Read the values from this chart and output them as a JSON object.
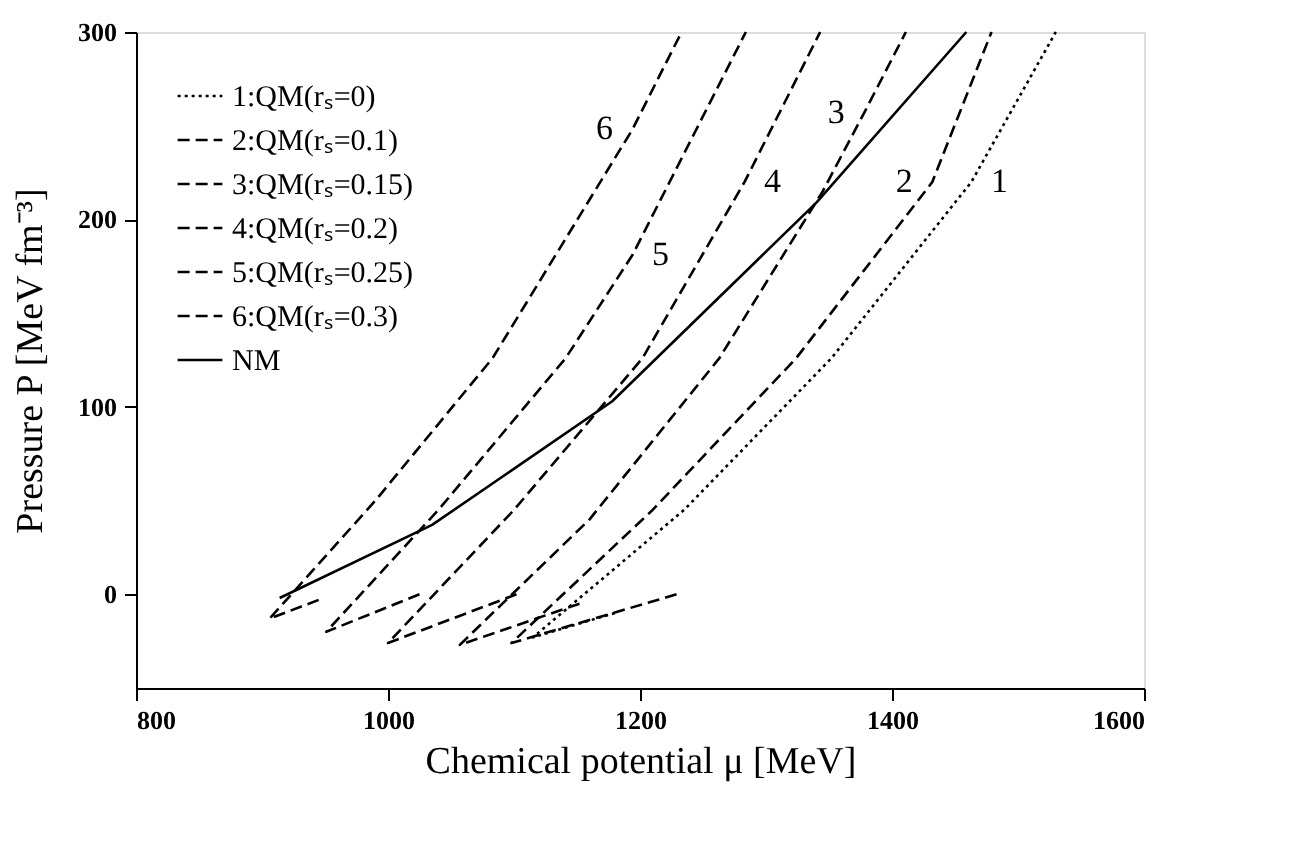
{
  "chart_data": {
    "type": "line",
    "xlabel": "Chemical potential μ [MeV]",
    "ylabel": "Pressure P [MeV fm⁻³]",
    "xlim": [
      800,
      1600
    ],
    "xticks": [
      800,
      1000,
      1200,
      1400,
      1600
    ],
    "ylim": [
      -50,
      300
    ],
    "yticks": [
      0,
      100,
      200,
      300
    ],
    "grid": false,
    "legend": "top left",
    "marker": "none",
    "series": [
      {
        "name": "1:QM(rₛ=0)",
        "color": "#000000",
        "line_style": "dotted",
        "x": [
          1180,
          1115,
          1235,
          1352,
          1463,
          1530
        ],
        "values": [
          -10,
          -23,
          45,
          126,
          220,
          300
        ]
      },
      {
        "name": "2:QM(rₛ=0.1)",
        "color": "#000000",
        "line_style": "dashed",
        "x": [
          1229,
          1098,
          1210,
          1324,
          1432,
          1479
        ],
        "values": [
          0,
          -26,
          45,
          126,
          220,
          300
        ]
      },
      {
        "name": "3:QM(rₛ=0.15)",
        "color": "#000000",
        "line_style": "dashed",
        "x": [
          1152,
          1057,
          1160,
          1263,
          1345,
          1378,
          1411
        ],
        "values": [
          -5,
          -27,
          40,
          126,
          215,
          257,
          300
        ]
      },
      {
        "name": "4:QM(rₛ=0.2)",
        "color": "#000000",
        "line_style": "dashed",
        "x": [
          1102,
          1000,
          1100,
          1202,
          1283,
          1343
        ],
        "values": [
          0,
          -26,
          45,
          126,
          220,
          300
        ]
      },
      {
        "name": "5:QM(rₛ=0.25)",
        "color": "#000000",
        "line_style": "dashed",
        "x": [
          1025,
          951,
          1040,
          1141,
          1194,
          1284
        ],
        "values": [
          0,
          -20,
          45,
          126,
          181,
          300
        ]
      },
      {
        "name": "6:QM(rₛ=0.3)",
        "color": "#000000",
        "line_style": "dashed",
        "x": [
          945,
          906,
          990,
          1083,
          1194,
          1233
        ],
        "values": [
          -3,
          -13,
          50,
          126,
          248,
          300
        ]
      },
      {
        "name": "NM",
        "color": "#000000",
        "line_style": "solid",
        "x": [
          914,
          1035,
          1178,
          1340,
          1459
        ],
        "values": [
          -2,
          37,
          103,
          209,
          300
        ]
      }
    ],
    "annotations": [
      {
        "text": "1",
        "x": 1463,
        "y": 220
      },
      {
        "text": "2",
        "x": 1432,
        "y": 220
      },
      {
        "text": "3",
        "x": 1378,
        "y": 257
      },
      {
        "text": "4",
        "x": 1283,
        "y": 220
      },
      {
        "text": "5",
        "x": 1194,
        "y": 181
      },
      {
        "text": "6",
        "x": 1194,
        "y": 248
      }
    ]
  }
}
